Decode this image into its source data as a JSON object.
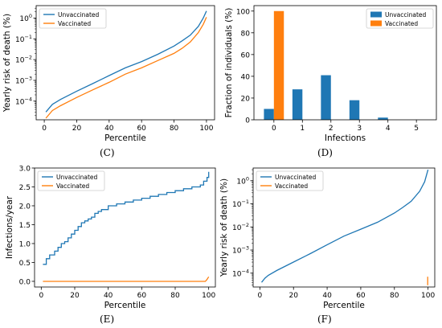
{
  "colors": {
    "unvaccinated": "#1f77b4",
    "vaccinated": "#ff7f0e"
  },
  "chart_data": [
    {
      "id": "C",
      "type": "line",
      "caption": "(C)",
      "xlabel": "Percentile",
      "ylabel": "Yearly risk of death (%)",
      "xlim": [
        -5,
        105
      ],
      "ylim_log10": [
        -4.9,
        0.6
      ],
      "yscale": "log",
      "xticks": [
        0,
        20,
        40,
        60,
        80,
        100
      ],
      "yticks": [
        {
          "exp": 0,
          "base": "10",
          "sup": "0"
        },
        {
          "exp": -1,
          "base": "10",
          "sup": "−1"
        },
        {
          "exp": -2,
          "base": "10",
          "sup": "−2"
        },
        {
          "exp": -3,
          "base": "10",
          "sup": "−3"
        },
        {
          "exp": -4,
          "base": "10",
          "sup": "−4"
        }
      ],
      "grid": false,
      "legend": "top-left",
      "series": [
        {
          "name": "Unvaccinated",
          "color_key": "unvaccinated",
          "x": [
            1,
            5,
            10,
            20,
            30,
            40,
            50,
            60,
            70,
            80,
            85,
            90,
            95,
            98,
            100
          ],
          "y": [
            3e-05,
            7e-05,
            0.00012,
            0.0003,
            0.0007,
            0.0017,
            0.004,
            0.008,
            0.018,
            0.045,
            0.08,
            0.15,
            0.4,
            1.0,
            2.2
          ]
        },
        {
          "name": "Vaccinated",
          "color_key": "vaccinated",
          "x": [
            1,
            5,
            10,
            20,
            30,
            40,
            50,
            60,
            70,
            80,
            85,
            90,
            95,
            98,
            100
          ],
          "y": [
            1.5e-05,
            3.5e-05,
            6e-05,
            0.00015,
            0.00035,
            0.0008,
            0.002,
            0.004,
            0.009,
            0.02,
            0.035,
            0.07,
            0.2,
            0.5,
            1.1
          ]
        }
      ]
    },
    {
      "id": "D",
      "type": "bar",
      "caption": "(D)",
      "xlabel": "Infections",
      "ylabel": "Fraction of individuals (%)",
      "categories": [
        "0",
        "1",
        "2",
        "3",
        "4",
        "5"
      ],
      "ylim": [
        0,
        105
      ],
      "yticks": [
        0,
        20,
        40,
        60,
        80,
        100
      ],
      "grid": false,
      "legend": "top-right",
      "series": [
        {
          "name": "Unvaccinated",
          "color_key": "unvaccinated",
          "values": [
            10,
            28,
            41,
            18,
            2,
            0
          ]
        },
        {
          "name": "Vaccinated",
          "color_key": "vaccinated",
          "values": [
            100,
            0,
            0,
            0,
            0,
            0
          ]
        }
      ]
    },
    {
      "id": "E",
      "type": "line",
      "caption": "(E)",
      "xlabel": "Percentile",
      "ylabel": "Infections/year",
      "xlim": [
        -4,
        104
      ],
      "ylim": [
        -0.15,
        3.0
      ],
      "xticks": [
        0,
        20,
        40,
        60,
        80,
        100
      ],
      "yticks": [
        0.0,
        0.5,
        1.0,
        1.5,
        2.0,
        2.5,
        3.0
      ],
      "ytick_labels": [
        "0.0",
        "0.5",
        "1.0",
        "1.5",
        "2.0",
        "2.5",
        "3.0"
      ],
      "grid": false,
      "legend": "top-left",
      "series": [
        {
          "name": "Unvaccinated",
          "color_key": "unvaccinated",
          "x": [
            1,
            3,
            5,
            8,
            10,
            12,
            14,
            16,
            18,
            20,
            22,
            24,
            26,
            28,
            30,
            32,
            34,
            36,
            40,
            45,
            50,
            55,
            60,
            65,
            70,
            75,
            80,
            85,
            90,
            95,
            97,
            99,
            100
          ],
          "y": [
            0.45,
            0.6,
            0.7,
            0.8,
            0.9,
            1.0,
            1.05,
            1.15,
            1.25,
            1.35,
            1.45,
            1.55,
            1.6,
            1.65,
            1.7,
            1.8,
            1.85,
            1.9,
            2.0,
            2.05,
            2.1,
            2.15,
            2.2,
            2.25,
            2.3,
            2.35,
            2.4,
            2.45,
            2.5,
            2.55,
            2.65,
            2.75,
            2.9
          ],
          "step": true
        },
        {
          "name": "Vaccinated",
          "color_key": "vaccinated",
          "x": [
            1,
            98,
            99,
            100
          ],
          "y": [
            0.0,
            0.0,
            0.05,
            0.12
          ]
        }
      ]
    },
    {
      "id": "F",
      "type": "line",
      "caption": "(F)",
      "xlabel": "Percentile",
      "ylabel": "Yearly risk of death (%)",
      "xlim": [
        -4,
        104
      ],
      "ylim_log10": [
        -4.6,
        0.55
      ],
      "yscale": "log",
      "xticks": [
        0,
        20,
        40,
        60,
        80,
        100
      ],
      "yticks": [
        {
          "exp": 0,
          "base": "10",
          "sup": "0"
        },
        {
          "exp": -1,
          "base": "10",
          "sup": "−1"
        },
        {
          "exp": -2,
          "base": "10",
          "sup": "−2"
        },
        {
          "exp": -3,
          "base": "10",
          "sup": "−3"
        },
        {
          "exp": -4,
          "base": "10",
          "sup": "−4"
        }
      ],
      "grid": false,
      "legend": "top-left",
      "series": [
        {
          "name": "Unvaccinated",
          "color_key": "unvaccinated",
          "x": [
            1,
            3,
            5,
            10,
            20,
            30,
            40,
            50,
            60,
            70,
            80,
            85,
            90,
            95,
            98,
            100
          ],
          "y": [
            4e-05,
            6e-05,
            8e-05,
            0.00013,
            0.0003,
            0.0007,
            0.0017,
            0.004,
            0.008,
            0.016,
            0.04,
            0.07,
            0.13,
            0.35,
            0.9,
            3.0
          ]
        },
        {
          "name": "Vaccinated",
          "color_key": "vaccinated",
          "x": [
            99.8,
            99.8
          ],
          "y": [
            3e-05,
            7e-05
          ]
        }
      ]
    }
  ]
}
